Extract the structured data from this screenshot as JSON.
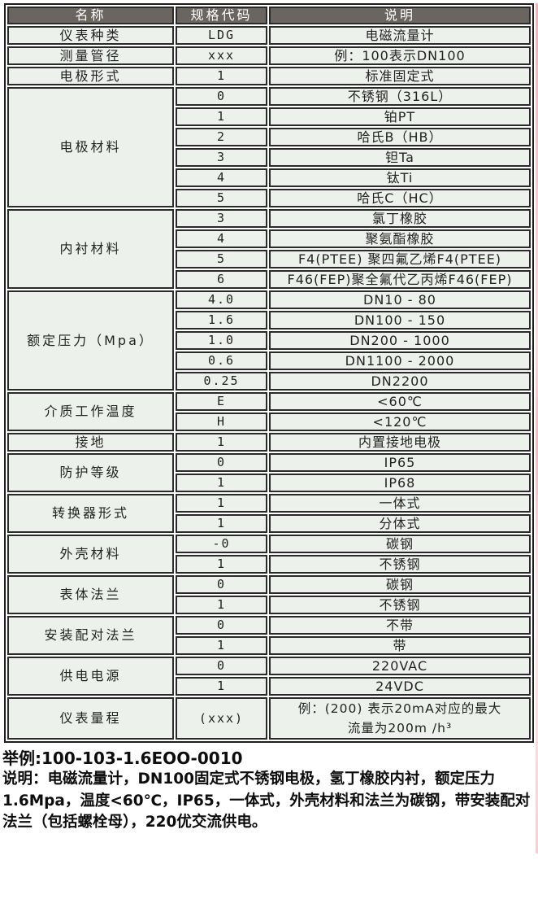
{
  "colors": {
    "header_bg": "#6b655f",
    "header_text": "#ffffff",
    "cell_bg": "#edf1ec",
    "border": "#2a2a2a",
    "page_bg": "#ffffff",
    "footer_text": "#0d0d0d",
    "scan_artifact_pink": "#e07a7a"
  },
  "table": {
    "headers": [
      "名称",
      "规格代码",
      "说明"
    ],
    "groups": [
      {
        "name": "仪表种类",
        "rows": [
          {
            "code": "LDG",
            "desc": "电磁流量计"
          }
        ]
      },
      {
        "name": "测量管径",
        "rows": [
          {
            "code": "xxx",
            "desc": "例：100表示DN100"
          }
        ]
      },
      {
        "name": "电极形式",
        "rows": [
          {
            "code": "1",
            "desc": "标准固定式"
          }
        ]
      },
      {
        "name": "电极材料",
        "rows": [
          {
            "code": "0",
            "desc": "不锈钢（316L）"
          },
          {
            "code": "1",
            "desc": "铂PT"
          },
          {
            "code": "2",
            "desc": "哈氏B（HB）"
          },
          {
            "code": "3",
            "desc": "钽Ta"
          },
          {
            "code": "4",
            "desc": "钛Ti"
          },
          {
            "code": "5",
            "desc": "哈氏C（HC）"
          }
        ]
      },
      {
        "name": "内衬材料",
        "rows": [
          {
            "code": "3",
            "desc": "氯丁橡胶"
          },
          {
            "code": "4",
            "desc": "聚氨酯橡胶"
          },
          {
            "code": "5",
            "desc": "F4(PTEE) 聚四氟乙烯F4(PTEE)"
          },
          {
            "code": "6",
            "desc": "F46(FEP)聚全氟代乙丙烯F46(FEP)"
          }
        ]
      },
      {
        "name": "额定压力（Mpa）",
        "rows": [
          {
            "code": "4.0",
            "desc": "DN10 - 80"
          },
          {
            "code": "1.6",
            "desc": "DN100 - 150"
          },
          {
            "code": "1.0",
            "desc": "DN200 - 1000"
          },
          {
            "code": "0.6",
            "desc": "DN1100 - 2000"
          },
          {
            "code": "0.25",
            "desc": "DN2200"
          }
        ]
      },
      {
        "name": "介质工作温度",
        "rows": [
          {
            "code": "E",
            "desc": "<60℃"
          },
          {
            "code": "H",
            "desc": "<120℃"
          }
        ]
      },
      {
        "name": "接地",
        "rows": [
          {
            "code": "1",
            "desc": "内置接地电极"
          }
        ]
      },
      {
        "name": "防护等级",
        "rows": [
          {
            "code": "0",
            "desc": "IP65"
          },
          {
            "code": "1",
            "desc": "IP68"
          }
        ]
      },
      {
        "name": "转换器形式",
        "rows": [
          {
            "code": "1",
            "desc": "一体式"
          },
          {
            "code": "1",
            "desc": "分体式"
          }
        ]
      },
      {
        "name": "外壳材料",
        "rows": [
          {
            "code": "-0",
            "desc": "碳钢"
          },
          {
            "code": "1",
            "desc": "不锈钢"
          }
        ]
      },
      {
        "name": "表体法兰",
        "rows": [
          {
            "code": "0",
            "desc": "碳钢"
          },
          {
            "code": "1",
            "desc": "不锈钢"
          }
        ]
      },
      {
        "name": "安装配对法兰",
        "rows": [
          {
            "code": "0",
            "desc": "不带"
          },
          {
            "code": "1",
            "desc": "带"
          }
        ]
      },
      {
        "name": "供电电源",
        "rows": [
          {
            "code": "0",
            "desc": "220VAC"
          },
          {
            "code": "1",
            "desc": "24VDC"
          }
        ]
      },
      {
        "name": "仪表量程",
        "rows": [
          {
            "code": "(xxx)",
            "desc": "例：(200) 表示20mA对应的最大\n流量为200m /h³",
            "tall": true
          }
        ]
      }
    ]
  },
  "footer": {
    "example": "举例:100-103-1.6EOO-0010",
    "note": "说明：电磁流量计，DN100固定式不锈钢电极，氢丁橡胶内衬，额定压力1.6Mpa，温度<60℃，IP65，一体式，外壳材料和法兰为碳钢，带安装配对法兰（包括螺栓母），220优交流供电。"
  }
}
